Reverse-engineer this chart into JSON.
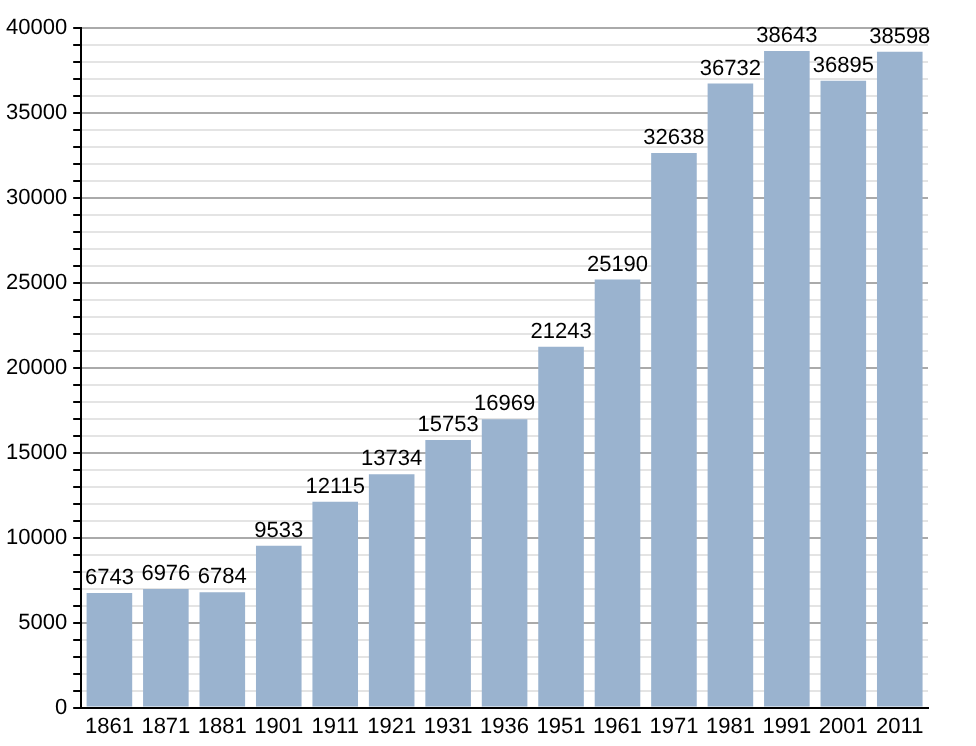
{
  "chart_data": {
    "type": "bar",
    "categories": [
      "1861",
      "1871",
      "1881",
      "1901",
      "1911",
      "1921",
      "1931",
      "1936",
      "1951",
      "1961",
      "1971",
      "1981",
      "1991",
      "2001",
      "2011"
    ],
    "values": [
      6743,
      6976,
      6784,
      9533,
      12115,
      13734,
      15753,
      16969,
      21243,
      25190,
      32638,
      36732,
      38643,
      36895,
      38598
    ],
    "color": "#9ab3cf",
    "ylim": [
      0,
      40000
    ],
    "yticks": [
      0,
      {
        "value": 1000,
        "label": null
      },
      {
        "value": 2000,
        "label": null
      },
      {
        "value": 3000,
        "label": null
      },
      {
        "value": 4000,
        "label": null
      },
      5000,
      {
        "value": 6000,
        "label": null
      },
      {
        "value": 7000,
        "label": null
      },
      {
        "value": 8000,
        "label": null
      },
      {
        "value": 9000,
        "label": null
      },
      10000,
      {
        "value": 11000,
        "label": null
      },
      {
        "value": 12000,
        "label": null
      },
      {
        "value": 13000,
        "label": null
      },
      {
        "value": 14000,
        "label": null
      },
      15000,
      {
        "value": 16000,
        "label": null
      },
      {
        "value": 17000,
        "label": null
      },
      {
        "value": 18000,
        "label": null
      },
      {
        "value": 19000,
        "label": null
      },
      20000,
      {
        "value": 21000,
        "label": null
      },
      {
        "value": 22000,
        "label": null
      },
      {
        "value": 23000,
        "label": null
      },
      {
        "value": 24000,
        "label": null
      },
      25000,
      {
        "value": 26000,
        "label": null
      },
      {
        "value": 27000,
        "label": null
      },
      {
        "value": 28000,
        "label": null
      },
      {
        "value": 29000,
        "label": null
      },
      30000,
      {
        "value": 31000,
        "label": null
      },
      {
        "value": 32000,
        "label": null
      },
      {
        "value": 33000,
        "label": null
      },
      {
        "value": 34000,
        "label": null
      },
      35000,
      {
        "value": 36000,
        "label": null
      },
      {
        "value": 37000,
        "label": null
      },
      {
        "value": 38000,
        "label": null
      },
      {
        "value": 39000,
        "label": null
      },
      40000
    ],
    "grid": "y",
    "data_labels": true,
    "legend": false
  }
}
